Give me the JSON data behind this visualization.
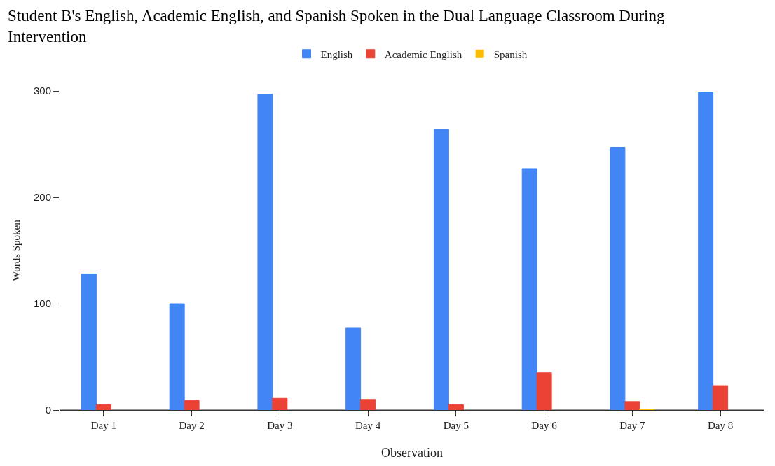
{
  "chart_data": {
    "type": "bar",
    "title": "Student B's English, Academic English, and Spanish Spoken in the Dual Language Classroom During Intervention",
    "xlabel": "Observation",
    "ylabel": "Words Spoken",
    "categories": [
      "Day 1",
      "Day 2",
      "Day 3",
      "Day 4",
      "Day 5",
      "Day 6",
      "Day 7",
      "Day 8"
    ],
    "series": [
      {
        "name": "English",
        "color": "#4285f4",
        "values": [
          128,
          100,
          297,
          77,
          264,
          227,
          247,
          299
        ]
      },
      {
        "name": "Academic English",
        "color": "#ea4335",
        "values": [
          5,
          9,
          11,
          10,
          5,
          35,
          8,
          23
        ]
      },
      {
        "name": "Spanish",
        "color": "#fbbc04",
        "values": [
          0,
          0,
          0,
          0,
          0,
          0,
          1,
          0
        ]
      }
    ],
    "ylim": [
      0,
      300
    ],
    "yticks": [
      0,
      100,
      200,
      300
    ],
    "grid": false,
    "legend": "top"
  }
}
